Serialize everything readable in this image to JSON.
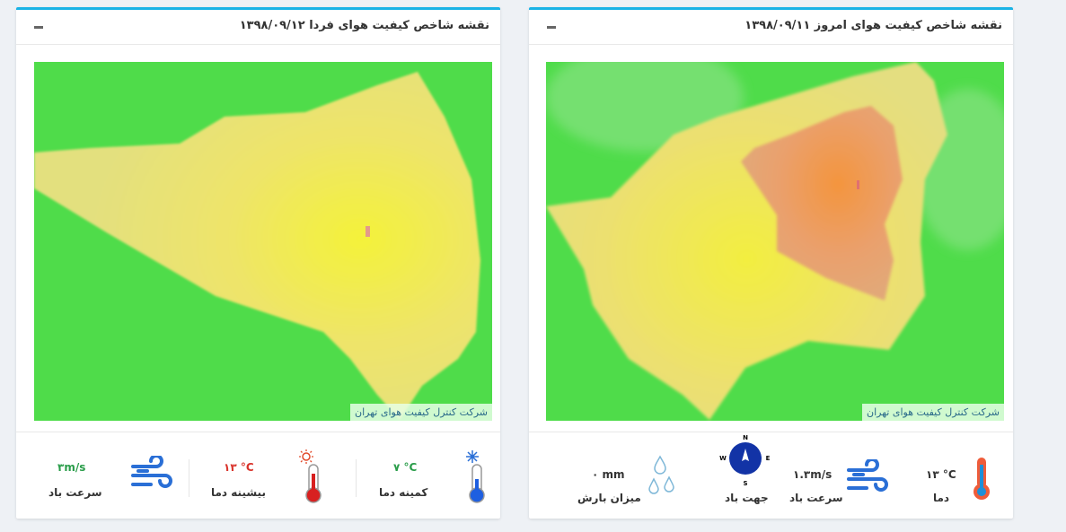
{
  "panels": [
    {
      "title": "نقشه شاخص کیفیت هوای فردا ۱۳۹۸/۰۹/۱۲",
      "attribution": "شرکت کنترل کیفیت هوای تهران",
      "stats": [
        {
          "value": "۳m/s",
          "label": "سرعت باد"
        },
        {
          "value": "۱۳ °C",
          "label": "بیشینه دما"
        },
        {
          "value": "۷ °C",
          "label": "کمینه دما"
        }
      ]
    },
    {
      "title": "نقشه شاخص کیفیت هوای امروز ۱۳۹۸/۰۹/۱۱",
      "attribution": "شرکت کنترل کیفیت هوای تهران",
      "stats": [
        {
          "value": "۰ mm",
          "label": "میزان بارش"
        },
        {
          "label": "جهت باد",
          "compass": [
            "N",
            "E",
            "S",
            "W"
          ]
        },
        {
          "value": "۱.۳m/s",
          "label": "سرعت باد"
        },
        {
          "value": "۱۳ °C",
          "label": "دما"
        }
      ]
    }
  ]
}
